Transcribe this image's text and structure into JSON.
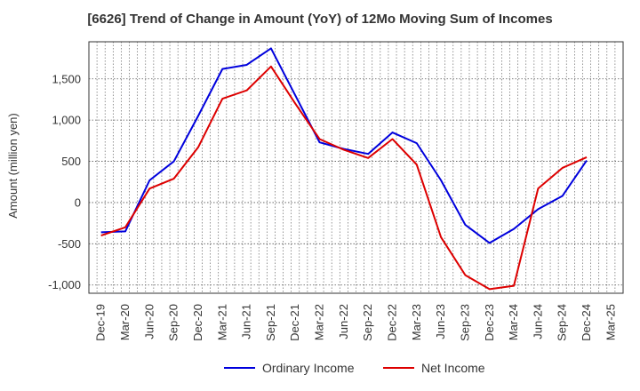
{
  "chart_data": {
    "type": "line",
    "title": "[6626]  Trend of Change in Amount (YoY) of 12Mo Moving Sum of Incomes",
    "xlabel": "",
    "ylabel": "Amount (million yen)",
    "x": [
      "Dec-19",
      "Mar-20",
      "Jun-20",
      "Sep-20",
      "Dec-20",
      "Mar-21",
      "Jun-21",
      "Sep-21",
      "Dec-21",
      "Mar-22",
      "Jun-22",
      "Sep-22",
      "Dec-22",
      "Mar-23",
      "Jun-23",
      "Sep-23",
      "Dec-23",
      "Mar-24",
      "Jun-24",
      "Sep-24",
      "Dec-24",
      "Mar-25"
    ],
    "ylim": [
      -1100,
      1950
    ],
    "yticks": [
      -1000,
      -500,
      0,
      500,
      1000,
      1500
    ],
    "ytick_labels": [
      "-1,000",
      "-500",
      "0",
      "500",
      "1,000",
      "1,500"
    ],
    "grid": true,
    "legend_position": "bottom",
    "series": [
      {
        "name": "Ordinary Income",
        "color": "#0000dd",
        "values": [
          -360,
          -350,
          270,
          500,
          1050,
          1620,
          1670,
          1870,
          1300,
          730,
          650,
          590,
          850,
          720,
          270,
          -270,
          -490,
          -320,
          -80,
          80,
          510,
          null
        ]
      },
      {
        "name": "Net Income",
        "color": "#dd0000",
        "values": [
          -400,
          -300,
          170,
          290,
          670,
          1260,
          1360,
          1650,
          1200,
          770,
          640,
          540,
          770,
          460,
          -420,
          -880,
          -1050,
          -1010,
          170,
          420,
          550,
          null
        ]
      }
    ]
  }
}
